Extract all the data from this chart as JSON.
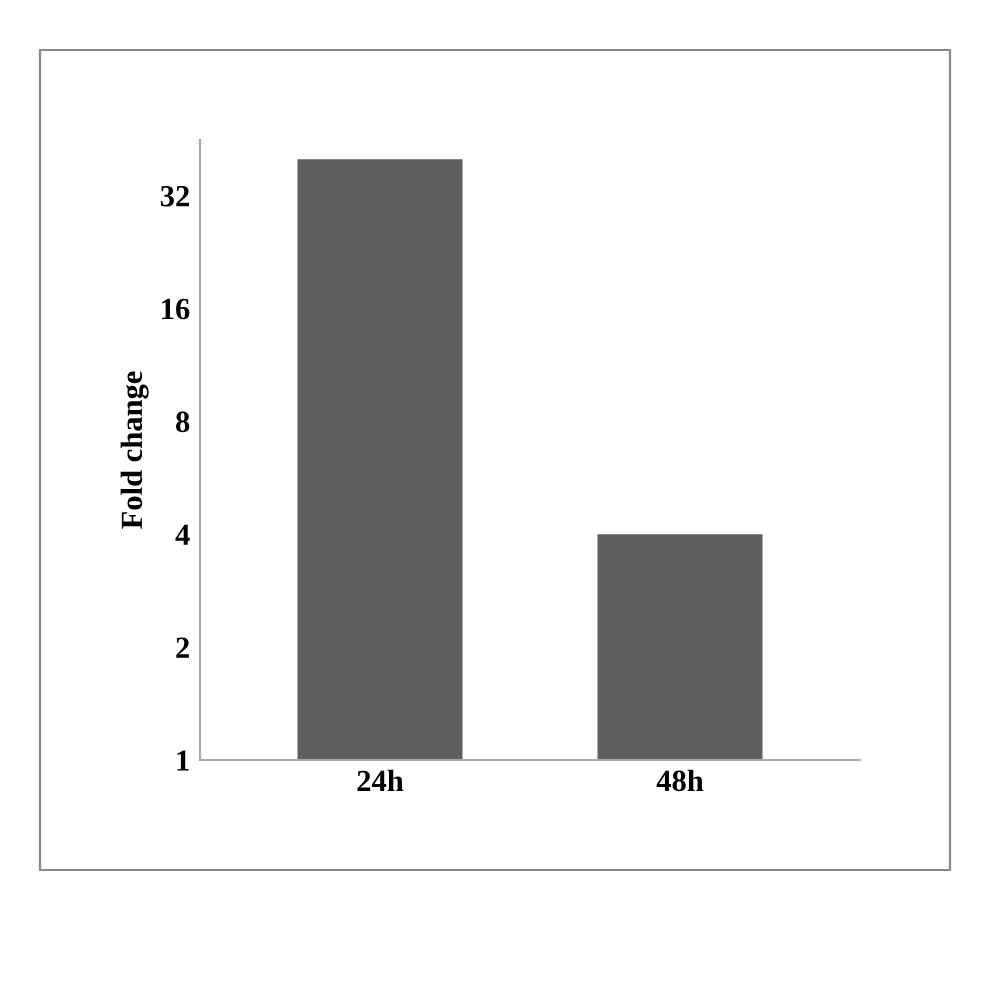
{
  "chart_data": {
    "type": "bar",
    "ylabel": "Fold change",
    "categories": [
      "24h",
      "48h"
    ],
    "values": [
      40,
      4
    ],
    "color": "#5f5f5f",
    "log": "y",
    "ylim": [
      1,
      45
    ],
    "yticks": [
      1,
      2,
      4,
      8,
      16,
      32
    ],
    "grid": false
  }
}
